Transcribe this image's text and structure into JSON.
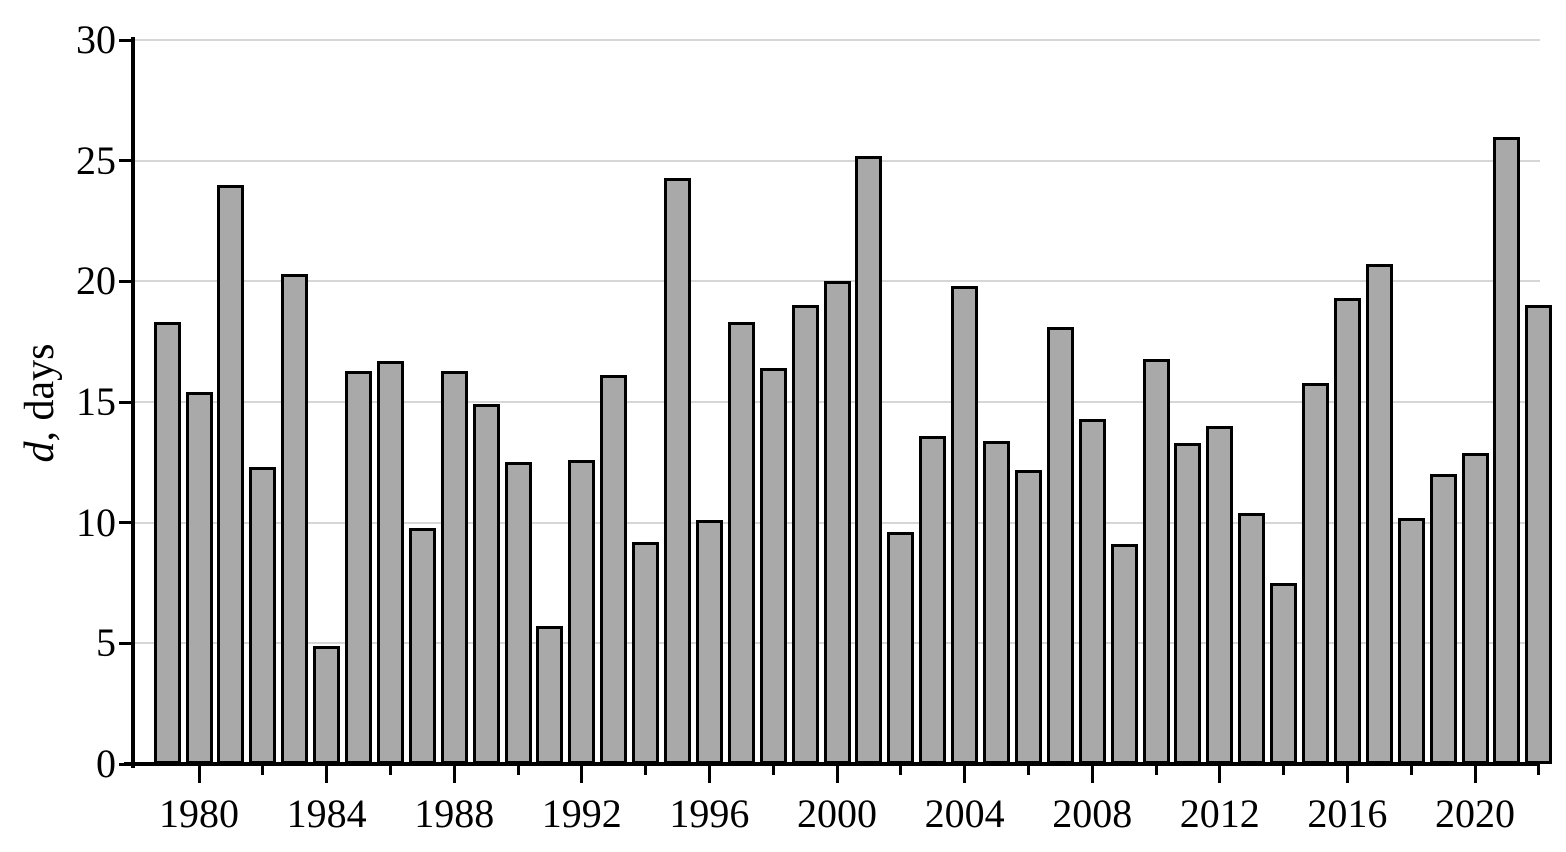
{
  "chart_data": {
    "type": "bar",
    "title": "",
    "ylabel": "d, days",
    "ylabel_italic": "d",
    "ylabel_rest": ", days",
    "xlabel": "",
    "categories": [
      1979,
      1980,
      1981,
      1982,
      1983,
      1984,
      1985,
      1986,
      1987,
      1988,
      1989,
      1990,
      1991,
      1992,
      1993,
      1994,
      1995,
      1996,
      1997,
      1998,
      1999,
      2000,
      2001,
      2002,
      2003,
      2004,
      2005,
      2006,
      2007,
      2008,
      2009,
      2010,
      2011,
      2012,
      2013,
      2014,
      2015,
      2016,
      2017,
      2018,
      2019,
      2020,
      2021,
      2022
    ],
    "values": [
      18.3,
      15.4,
      24.0,
      12.3,
      20.3,
      4.9,
      16.3,
      16.7,
      9.8,
      16.3,
      14.9,
      12.5,
      5.7,
      12.6,
      16.1,
      9.2,
      24.3,
      10.1,
      18.3,
      16.4,
      19.0,
      20.0,
      25.2,
      9.6,
      13.6,
      19.8,
      13.4,
      12.2,
      18.1,
      14.3,
      9.1,
      16.8,
      13.3,
      14.0,
      10.4,
      7.5,
      15.8,
      19.3,
      20.7,
      10.2,
      12.0,
      12.9,
      26.0,
      19.0
    ],
    "ylim": [
      0,
      30
    ],
    "yticks": [
      0,
      5,
      10,
      15,
      20,
      25,
      30
    ],
    "xticks_major": [
      1980,
      1984,
      1988,
      1992,
      1996,
      2000,
      2004,
      2008,
      2012,
      2016,
      2020
    ],
    "xticks_minor": [
      1982,
      1986,
      1990,
      1994,
      1998,
      2002,
      2006,
      2010,
      2014,
      2018,
      2022
    ],
    "grid": true,
    "legend_position": "none",
    "bar_fill": "#a9a9a9",
    "bar_border": "#000000",
    "grid_color": "#d6d6d6",
    "axis_color": "#000000"
  }
}
